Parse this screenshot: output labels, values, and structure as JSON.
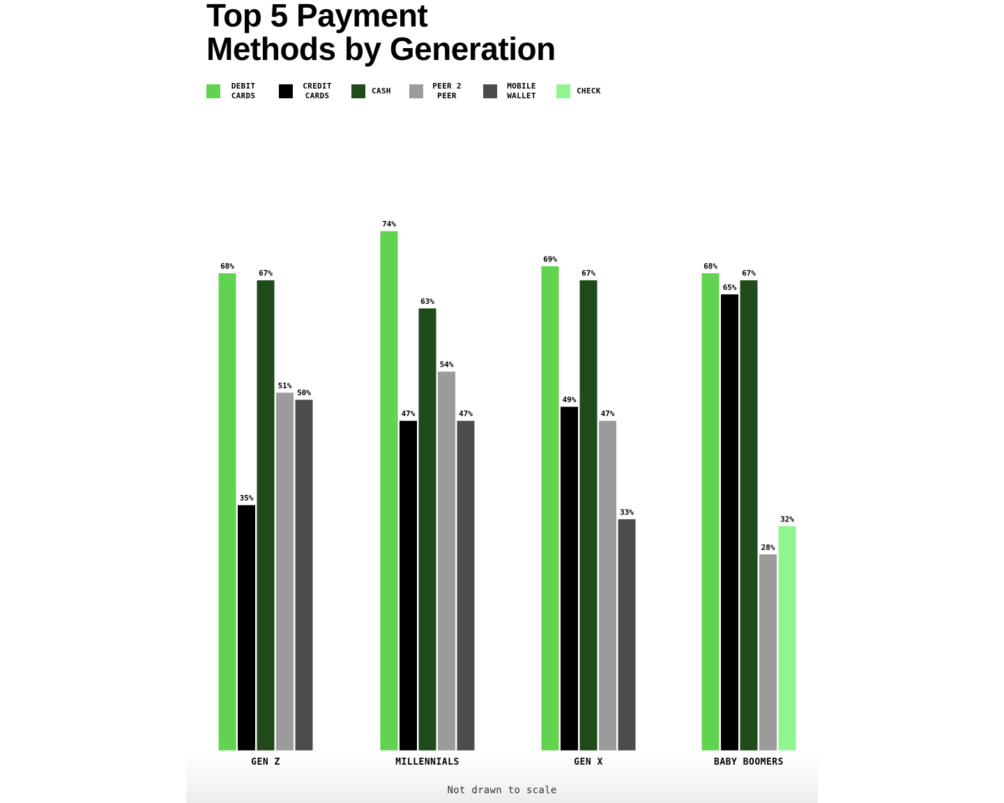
{
  "title_line1": "Top 5 Payment",
  "title_line2": "Methods by Generation",
  "footer_note": "Not drawn to scale",
  "legend": [
    {
      "label": "DEBIT CARDS",
      "color": "#60d44e"
    },
    {
      "label": "CREDIT CARDS",
      "color": "#000000"
    },
    {
      "label": "CASH",
      "color": "#1f4a1a"
    },
    {
      "label": "PEER 2 PEER",
      "color": "#9b9b9b"
    },
    {
      "label": "MOBILE WALLET",
      "color": "#4a4d4c"
    },
    {
      "label": "CHECK",
      "color": "#8ff58e"
    }
  ],
  "chart_data": {
    "type": "bar",
    "title": "Top 5 Payment Methods by Generation",
    "categories": [
      "GEN Z",
      "MILLENNIALS",
      "GEN X",
      "BABY BOOMERS"
    ],
    "ylim": [
      0,
      80
    ],
    "grid": false,
    "legend_position": "top-left",
    "note": "Not drawn to scale",
    "groups": [
      {
        "category": "GEN Z",
        "bars": [
          {
            "series": "DEBIT CARDS",
            "value": 68,
            "label": "68%"
          },
          {
            "series": "CREDIT CARDS",
            "value": 35,
            "label": "35%"
          },
          {
            "series": "CASH",
            "value": 67,
            "label": "67%"
          },
          {
            "series": "PEER 2 PEER",
            "value": 51,
            "label": "51%"
          },
          {
            "series": "MOBILE WALLET",
            "value": 50,
            "label": "50%"
          }
        ]
      },
      {
        "category": "MILLENNIALS",
        "bars": [
          {
            "series": "DEBIT CARDS",
            "value": 74,
            "label": "74%"
          },
          {
            "series": "CREDIT CARDS",
            "value": 47,
            "label": "47%"
          },
          {
            "series": "CASH",
            "value": 63,
            "label": "63%"
          },
          {
            "series": "PEER 2 PEER",
            "value": 54,
            "label": "54%"
          },
          {
            "series": "MOBILE WALLET",
            "value": 47,
            "label": "47%"
          }
        ]
      },
      {
        "category": "GEN X",
        "bars": [
          {
            "series": "DEBIT CARDS",
            "value": 69,
            "label": "69%"
          },
          {
            "series": "CREDIT CARDS",
            "value": 49,
            "label": "49%"
          },
          {
            "series": "CASH",
            "value": 67,
            "label": "67%"
          },
          {
            "series": "PEER 2 PEER",
            "value": 47,
            "label": "47%"
          },
          {
            "series": "MOBILE WALLET",
            "value": 33,
            "label": "33%"
          }
        ]
      },
      {
        "category": "BABY BOOMERS",
        "bars": [
          {
            "series": "DEBIT CARDS",
            "value": 68,
            "label": "68%"
          },
          {
            "series": "CREDIT CARDS",
            "value": 65,
            "label": "65%"
          },
          {
            "series": "CASH",
            "value": 67,
            "label": "67%"
          },
          {
            "series": "PEER 2 PEER",
            "value": 28,
            "label": "28%"
          },
          {
            "series": "CHECK",
            "value": 32,
            "label": "32%"
          }
        ]
      }
    ]
  }
}
